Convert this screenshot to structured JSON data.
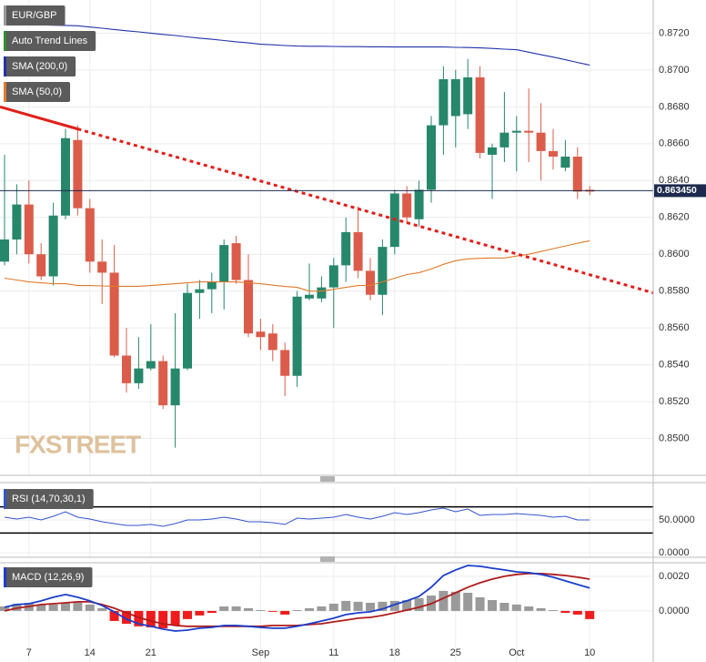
{
  "chart_data": [
    {
      "type": "candlestick",
      "title": "EUR/GBP",
      "categories": [
        null,
        null,
        "7",
        null,
        null,
        null,
        null,
        "14",
        null,
        null,
        null,
        null,
        "21",
        null,
        null,
        null,
        null,
        null,
        null,
        null,
        null,
        "Sep",
        null,
        null,
        null,
        null,
        null,
        "11",
        null,
        null,
        null,
        null,
        "18",
        null,
        null,
        null,
        null,
        "25",
        null,
        null,
        null,
        null,
        "Oct",
        null,
        null,
        null,
        null,
        null,
        "10"
      ],
      "open": [
        0.8596,
        0.8608,
        0.8627,
        0.86,
        0.8588,
        0.8621,
        0.8662,
        0.8625,
        0.8596,
        0.859,
        0.8545,
        0.853,
        0.8538,
        0.8542,
        0.8518,
        0.8538,
        0.8579,
        0.8581,
        0.8585,
        0.8606,
        0.8586,
        0.8558,
        0.8557,
        0.8548,
        0.8534,
        0.8576,
        0.8576,
        0.8582,
        0.8594,
        0.8612,
        0.8591,
        0.8578,
        0.8604,
        0.8633,
        0.8619,
        0.8635,
        0.867,
        0.8675,
        0.8676,
        0.8696,
        0.8654,
        0.8658,
        0.8666,
        0.8667,
        0.8666,
        0.8656,
        0.8647,
        0.8653,
        0.8635
      ],
      "high": [
        0.8654,
        0.8638,
        0.864,
        0.8606,
        0.8628,
        0.8668,
        0.867,
        0.863,
        0.8608,
        0.8605,
        0.856,
        0.8555,
        0.8562,
        0.8545,
        0.8568,
        0.8584,
        0.8586,
        0.859,
        0.8608,
        0.861,
        0.86,
        0.8565,
        0.8562,
        0.8552,
        0.858,
        0.8595,
        0.8588,
        0.8598,
        0.862,
        0.8626,
        0.8598,
        0.8608,
        0.8635,
        0.8637,
        0.864,
        0.8675,
        0.8702,
        0.87,
        0.8706,
        0.8702,
        0.866,
        0.8688,
        0.8675,
        0.869,
        0.8682,
        0.8668,
        0.8662,
        0.8658,
        0.8637
      ],
      "low": [
        0.8594,
        0.86,
        0.8595,
        0.8586,
        0.8583,
        0.8619,
        0.8621,
        0.859,
        0.8573,
        0.8544,
        0.8525,
        0.8527,
        0.8537,
        0.8516,
        0.8495,
        0.8537,
        0.8565,
        0.8568,
        0.857,
        0.8584,
        0.8555,
        0.8548,
        0.8542,
        0.8523,
        0.8528,
        0.8575,
        0.8574,
        0.856,
        0.8585,
        0.8587,
        0.8575,
        0.8567,
        0.86,
        0.8617,
        0.8615,
        0.8628,
        0.8654,
        0.8658,
        0.8668,
        0.8652,
        0.863,
        0.865,
        0.8645,
        0.865,
        0.864,
        0.8646,
        0.8645,
        0.863,
        0.8632
      ],
      "close": [
        0.8608,
        0.8627,
        0.86,
        0.8588,
        0.8621,
        0.8663,
        0.8625,
        0.8596,
        0.859,
        0.8545,
        0.853,
        0.8538,
        0.8542,
        0.8518,
        0.8538,
        0.8579,
        0.8581,
        0.8585,
        0.8605,
        0.8586,
        0.8557,
        0.8555,
        0.8548,
        0.8534,
        0.8577,
        0.8578,
        0.8582,
        0.8594,
        0.8612,
        0.8591,
        0.8578,
        0.8604,
        0.8633,
        0.862,
        0.8635,
        0.867,
        0.8695,
        0.8695,
        0.8696,
        0.8655,
        0.8658,
        0.8666,
        0.8667,
        0.8666,
        0.8656,
        0.8653,
        0.8653,
        0.8634,
        0.8634
      ],
      "up_color": "#26876b",
      "down_color": "#db5c4a",
      "legend_color": "#9a9a9a",
      "ylim": [
        0.848,
        0.8738
      ],
      "yticks": [
        {
          "value": 0.85,
          "label": "0.8500"
        },
        {
          "value": 0.852,
          "label": "0.8520"
        },
        {
          "value": 0.854,
          "label": "0.8540"
        },
        {
          "value": 0.856,
          "label": "0.8560"
        },
        {
          "value": 0.858,
          "label": "0.8580"
        },
        {
          "value": 0.86,
          "label": "0.8600"
        },
        {
          "value": 0.862,
          "label": "0.8620"
        },
        {
          "value": 0.864,
          "label": "0.8640"
        },
        {
          "value": 0.866,
          "label": "0.8660"
        },
        {
          "value": 0.868,
          "label": "0.8680"
        },
        {
          "value": 0.87,
          "label": "0.8700"
        },
        {
          "value": 0.872,
          "label": "0.8720"
        }
      ],
      "grid": true,
      "last_price": {
        "value": 0.86345,
        "label": "0.863450"
      },
      "trend_line": {
        "name": "Auto Trend Lines",
        "color": "#e0201b",
        "legend_color": "#2f8f2f",
        "points": [
          [
            -0.37,
            0.868
          ],
          [
            6,
            0.8668
          ]
        ]
      },
      "overlays": [
        {
          "name": "SMA (200,0)",
          "color": "#2233aa",
          "values": [
            0.8725,
            0.87248,
            0.87247,
            0.87245,
            0.87243,
            0.87242,
            0.8724,
            0.87233,
            0.87227,
            0.8722,
            0.87213,
            0.87207,
            0.872,
            0.87193,
            0.87187,
            0.8718,
            0.87173,
            0.87167,
            0.8716,
            0.87153,
            0.87147,
            0.8714,
            0.87137,
            0.87133,
            0.8713,
            0.87129,
            0.87129,
            0.87128,
            0.87127,
            0.87127,
            0.87126,
            0.87126,
            0.87125,
            0.87125,
            0.87125,
            0.87125,
            0.87125,
            0.87123,
            0.87122,
            0.8712,
            0.87117,
            0.87113,
            0.8711,
            0.87097,
            0.87083,
            0.8707,
            0.87056,
            0.87041,
            0.87027
          ]
        },
        {
          "name": "SMA (50,0)",
          "color": "#e07b2a",
          "values": [
            0.8587,
            0.8586,
            0.8585,
            0.85845,
            0.8584,
            0.8584,
            0.8583,
            0.8583,
            0.85828,
            0.85826,
            0.85826,
            0.85826,
            0.8583,
            0.85835,
            0.8584,
            0.85845,
            0.8585,
            0.8585,
            0.8585,
            0.8585,
            0.85845,
            0.8584,
            0.85832,
            0.85825,
            0.8582,
            0.858,
            0.858,
            0.8581,
            0.8582,
            0.8583,
            0.8583,
            0.8585,
            0.8587,
            0.8589,
            0.859,
            0.8592,
            0.85945,
            0.85965,
            0.85975,
            0.85978,
            0.8598,
            0.8598,
            0.8599,
            0.86,
            0.86015,
            0.8603,
            0.86045,
            0.8606,
            0.86073
          ]
        }
      ],
      "watermark": "FXSTREET"
    },
    {
      "type": "line",
      "title": "RSI (14,70,30,1)",
      "color": "#3355cc",
      "values": [
        54.2,
        51.4,
        54.2,
        50,
        55.6,
        62.5,
        54.2,
        51.4,
        47.2,
        44.4,
        41.7,
        41.7,
        43.1,
        40.3,
        44.4,
        50,
        50,
        51.4,
        54.2,
        51.4,
        47.2,
        47.2,
        45.8,
        43.1,
        52.8,
        51.4,
        52.8,
        54.2,
        58.3,
        54.2,
        51.4,
        55.6,
        61.1,
        58.3,
        61.1,
        65.3,
        68.1,
        62.5,
        66.7,
        56.9,
        58.3,
        58.3,
        59.7,
        58.3,
        56.9,
        54.2,
        55.6,
        50,
        50
      ],
      "ylim": [
        -7,
        100
      ],
      "yticks": [
        {
          "value": 50,
          "label": "50.0000"
        },
        {
          "value": 0,
          "label": "0.0000"
        }
      ],
      "bands": [
        70,
        30
      ]
    },
    {
      "type": "macd",
      "title": "MACD (12,26,9)",
      "histogram": [
        0.00026,
        0.00042,
        0.00047,
        0.00037,
        0.00037,
        0.00047,
        0.00053,
        0.00037,
        0.00016,
        -0.00058,
        -0.00074,
        -0.00089,
        -0.00095,
        -0.001,
        -0.00084,
        -0.00047,
        -0.00026,
        -0.00011,
        0.00026,
        0.00026,
        0.00016,
        5e-05,
        -5e-05,
        -0.00021,
        5e-05,
        0.00016,
        0.00026,
        0.00042,
        0.00058,
        0.00053,
        0.00047,
        0.00053,
        0.00058,
        0.00063,
        0.00074,
        0.00089,
        0.00116,
        0.00111,
        0.00105,
        0.00079,
        0.00063,
        0.00047,
        0.00037,
        0.00026,
        0.00016,
        5e-05,
        -0.00011,
        -0.00021,
        -0.00047
      ],
      "macd": [
        0.00021,
        0.00037,
        0.00042,
        0.00058,
        0.00079,
        0.00095,
        0.00079,
        0.00058,
        0.00032,
        -5e-05,
        -0.00047,
        -0.00074,
        -0.00089,
        -0.00105,
        -0.00116,
        -0.00111,
        -0.001,
        -0.00095,
        -0.00084,
        -0.00084,
        -0.00089,
        -0.00095,
        -0.001,
        -0.001,
        -0.00089,
        -0.00074,
        -0.00058,
        -0.00042,
        -0.00021,
        -0.00011,
        -5e-05,
        0.00011,
        0.00037,
        0.00058,
        0.00084,
        0.00137,
        0.00205,
        0.00237,
        0.00263,
        0.00258,
        0.00247,
        0.00237,
        0.00226,
        0.00221,
        0.00211,
        0.00195,
        0.00174,
        0.00153,
        0.00132
      ],
      "signal": [
        0,
        0.00016,
        0.00026,
        0.00037,
        0.00042,
        0.00047,
        0.00053,
        0.00053,
        0.00037,
        0.00016,
        -0.00011,
        -0.00037,
        -0.00058,
        -0.00074,
        -0.00084,
        -0.00089,
        -0.00089,
        -0.00089,
        -0.00089,
        -0.00089,
        -0.00089,
        -0.00089,
        -0.00084,
        -0.00084,
        -0.00084,
        -0.00079,
        -0.00074,
        -0.00063,
        -0.00053,
        -0.00042,
        -0.00037,
        -0.00026,
        -0.00011,
        5e-05,
        0.00021,
        0.00042,
        0.00074,
        0.00105,
        0.00137,
        0.00163,
        0.00184,
        0.002,
        0.00211,
        0.00216,
        0.00216,
        0.00211,
        0.00205,
        0.00195,
        0.00184
      ],
      "macd_color": "#1a3fcc",
      "signal_color": "#b01c1c",
      "hist_up_color": "#9a9a9a",
      "hist_down_color": "#ee1c1c",
      "ylim": [
        -0.00295,
        0.00268
      ],
      "yticks": [
        {
          "value": 0.002,
          "label": "0.0020"
        },
        {
          "value": 0,
          "label": "0.0000"
        }
      ]
    }
  ]
}
